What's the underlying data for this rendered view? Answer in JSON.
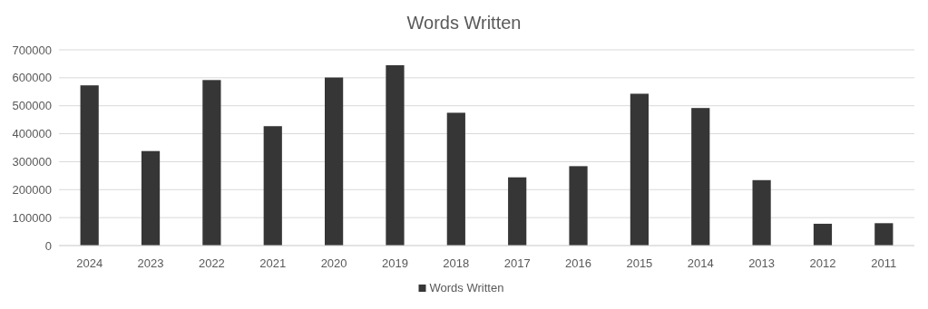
{
  "chart_data": {
    "type": "bar",
    "title": "Words Written",
    "categories": [
      "2024",
      "2023",
      "2022",
      "2021",
      "2020",
      "2019",
      "2018",
      "2017",
      "2016",
      "2015",
      "2014",
      "2013",
      "2012",
      "2011"
    ],
    "series": [
      {
        "name": "Words Written",
        "color": "#363636",
        "values": [
          573000,
          338000,
          592000,
          427000,
          601000,
          645000,
          475000,
          244000,
          284000,
          543000,
          492000,
          234000,
          78000,
          80000
        ]
      }
    ],
    "ylim": [
      0,
      700000
    ],
    "yticks": [
      0,
      100000,
      200000,
      300000,
      400000,
      500000,
      600000,
      700000
    ],
    "grid": "y",
    "legend": "bottom"
  }
}
